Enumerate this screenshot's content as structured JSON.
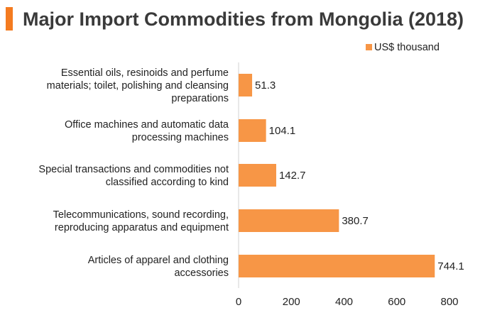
{
  "header": {
    "title": "Major Import Commodities from Mongolia (2018)",
    "accent_color": "#f47b20"
  },
  "chart_data": {
    "type": "bar",
    "orientation": "horizontal",
    "title": "Major Import Commodities from Mongolia (2018)",
    "categories": [
      [
        "Essential oils, resinoids and perfume",
        "materials; toilet, polishing and cleansing",
        "preparations"
      ],
      [
        "Office machines and automatic data",
        "processing machines"
      ],
      [
        "Special transactions and commodities not",
        "classified according to kind"
      ],
      [
        "Telecommunications, sound recording,",
        "reproducing apparatus and equipment"
      ],
      [
        "Articles of apparel and clothing",
        "accessories"
      ]
    ],
    "series": [
      {
        "name": "US$ thousand",
        "values": [
          51.3,
          104.1,
          142.7,
          380.7,
          744.1
        ],
        "value_labels": [
          "51.3",
          "104.1",
          "142.7",
          "380.7",
          "744.1"
        ],
        "color": "#f79646"
      }
    ],
    "xlim": [
      0,
      800
    ],
    "xticks": [
      "0",
      "200",
      "400",
      "600",
      "800"
    ],
    "grid": false,
    "legend_position": "top-right"
  }
}
